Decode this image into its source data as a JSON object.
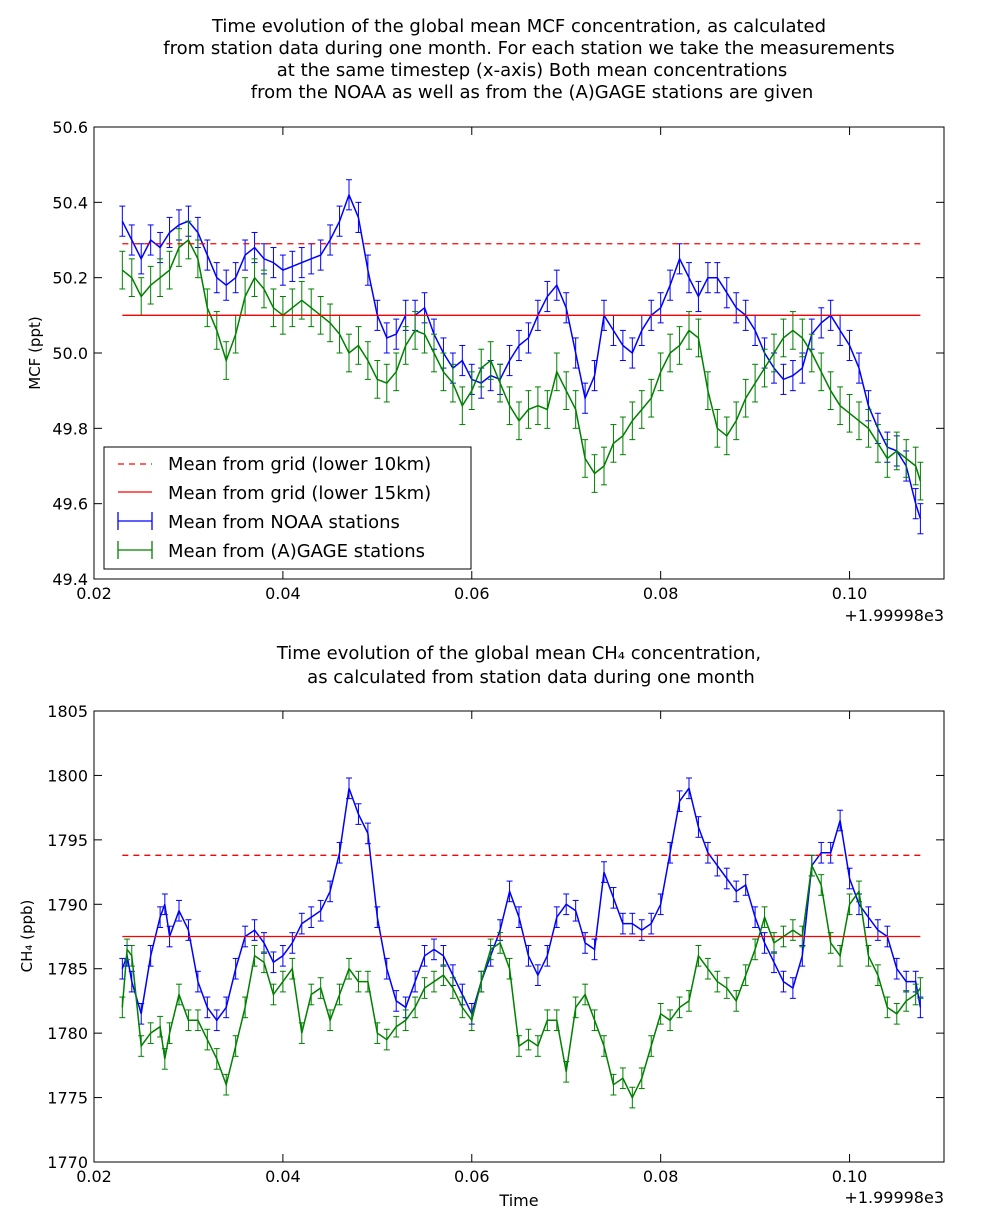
{
  "chart_data": [
    {
      "type": "line",
      "title_lines": [
        "Time evolution of the global mean MCF concentration, as calculated",
        "from station data during one month. For each station we take the measurements",
        "at the same timestep (x-axis) Both mean concentrations",
        "from the NOAA as well as from the (A)GAGE stations are given"
      ],
      "ylabel": "MCF (ppt)",
      "xlabel": "",
      "xlim": [
        0.02,
        0.11
      ],
      "ylim": [
        49.4,
        50.6
      ],
      "x_ticks": [
        "0.02",
        "0.04",
        "0.06",
        "0.08",
        "0.10"
      ],
      "y_ticks": [
        "49.4",
        "49.6",
        "49.8",
        "50.0",
        "50.2",
        "50.4",
        "50.6"
      ],
      "x_offset_label": "+1.99998e3",
      "grid": false,
      "legend_position": "lower-left",
      "hlines": [
        {
          "name": "Mean from grid (lower 10km)",
          "y": 50.29,
          "style": "dashed",
          "color": "#ff0000"
        },
        {
          "name": "Mean from grid (lower 15km)",
          "y": 50.1,
          "style": "solid",
          "color": "#ff0000"
        }
      ],
      "series": [
        {
          "name": "Mean from NOAA stations",
          "color": "#0000ff",
          "error": 0.04,
          "x": [
            0.023,
            0.024,
            0.025,
            0.026,
            0.027,
            0.028,
            0.029,
            0.03,
            0.031,
            0.032,
            0.033,
            0.034,
            0.035,
            0.036,
            0.037,
            0.038,
            0.039,
            0.04,
            0.041,
            0.042,
            0.043,
            0.044,
            0.045,
            0.046,
            0.047,
            0.048,
            0.049,
            0.05,
            0.051,
            0.052,
            0.053,
            0.054,
            0.055,
            0.056,
            0.057,
            0.058,
            0.059,
            0.06,
            0.061,
            0.062,
            0.063,
            0.064,
            0.065,
            0.066,
            0.067,
            0.068,
            0.069,
            0.07,
            0.071,
            0.072,
            0.073,
            0.074,
            0.075,
            0.076,
            0.077,
            0.078,
            0.079,
            0.08,
            0.081,
            0.082,
            0.083,
            0.084,
            0.085,
            0.086,
            0.087,
            0.088,
            0.089,
            0.09,
            0.091,
            0.092,
            0.093,
            0.094,
            0.095,
            0.096,
            0.097,
            0.098,
            0.099,
            0.1,
            0.101,
            0.102,
            0.103,
            0.104,
            0.105,
            0.106,
            0.107,
            0.1075
          ],
          "y": [
            50.35,
            50.3,
            50.25,
            50.3,
            50.28,
            50.32,
            50.34,
            50.35,
            50.32,
            50.26,
            50.2,
            50.18,
            50.2,
            50.26,
            50.28,
            50.25,
            50.24,
            50.22,
            50.23,
            50.24,
            50.25,
            50.26,
            50.3,
            50.35,
            50.42,
            50.36,
            50.22,
            50.1,
            50.04,
            50.05,
            50.1,
            50.1,
            50.12,
            50.05,
            50.0,
            49.96,
            49.98,
            49.93,
            49.92,
            49.94,
            49.93,
            49.98,
            50.02,
            50.04,
            50.1,
            50.15,
            50.18,
            50.12,
            50.0,
            49.88,
            49.94,
            50.1,
            50.06,
            50.02,
            50.0,
            50.06,
            50.1,
            50.12,
            50.18,
            50.25,
            50.2,
            50.15,
            50.2,
            50.2,
            50.16,
            50.12,
            50.1,
            50.06,
            50.0,
            49.96,
            49.93,
            49.94,
            49.96,
            50.05,
            50.08,
            50.1,
            50.06,
            50.02,
            49.96,
            49.86,
            49.8,
            49.75,
            49.74,
            49.7,
            49.6,
            49.56
          ]
        },
        {
          "name": "Mean from (A)GAGE stations",
          "color": "#008000",
          "error": 0.05,
          "x": [
            0.023,
            0.024,
            0.025,
            0.026,
            0.027,
            0.028,
            0.029,
            0.03,
            0.031,
            0.032,
            0.033,
            0.034,
            0.035,
            0.036,
            0.037,
            0.038,
            0.039,
            0.04,
            0.041,
            0.042,
            0.043,
            0.044,
            0.045,
            0.046,
            0.047,
            0.048,
            0.049,
            0.05,
            0.051,
            0.052,
            0.053,
            0.054,
            0.055,
            0.056,
            0.057,
            0.058,
            0.059,
            0.06,
            0.061,
            0.062,
            0.063,
            0.064,
            0.065,
            0.066,
            0.067,
            0.068,
            0.069,
            0.07,
            0.071,
            0.072,
            0.073,
            0.074,
            0.075,
            0.076,
            0.077,
            0.078,
            0.079,
            0.08,
            0.081,
            0.082,
            0.083,
            0.084,
            0.085,
            0.086,
            0.087,
            0.088,
            0.089,
            0.09,
            0.091,
            0.092,
            0.093,
            0.094,
            0.095,
            0.096,
            0.097,
            0.098,
            0.099,
            0.1,
            0.101,
            0.102,
            0.103,
            0.104,
            0.105,
            0.106,
            0.107,
            0.1075
          ],
          "y": [
            50.22,
            50.2,
            50.15,
            50.18,
            50.2,
            50.22,
            50.28,
            50.3,
            50.25,
            50.12,
            50.06,
            49.98,
            50.05,
            50.15,
            50.2,
            50.17,
            50.12,
            50.1,
            50.12,
            50.14,
            50.12,
            50.1,
            50.08,
            50.05,
            50.0,
            50.02,
            49.98,
            49.93,
            49.92,
            49.95,
            50.02,
            50.06,
            50.05,
            50.0,
            49.95,
            49.92,
            49.86,
            49.9,
            49.96,
            49.98,
            49.92,
            49.86,
            49.82,
            49.85,
            49.86,
            49.85,
            49.95,
            49.9,
            49.85,
            49.72,
            49.68,
            49.7,
            49.76,
            49.78,
            49.82,
            49.85,
            49.88,
            49.95,
            50.0,
            50.02,
            50.06,
            50.04,
            49.9,
            49.8,
            49.78,
            49.82,
            49.88,
            49.92,
            49.96,
            50.0,
            50.04,
            50.06,
            50.04,
            50.0,
            49.95,
            49.9,
            49.86,
            49.84,
            49.82,
            49.8,
            49.76,
            49.72,
            49.74,
            49.72,
            49.7,
            49.66
          ]
        }
      ]
    },
    {
      "type": "line",
      "title_lines": [
        "Time evolution of the global mean CH₄ concentration,",
        "as calculated from station data during one month"
      ],
      "ylabel": "CH₄ (ppb)",
      "xlabel": "Time",
      "xlim": [
        0.02,
        0.11
      ],
      "ylim": [
        1770,
        1805
      ],
      "x_ticks": [
        "0.02",
        "0.04",
        "0.06",
        "0.08",
        "0.10"
      ],
      "y_ticks": [
        "1770",
        "1775",
        "1780",
        "1785",
        "1790",
        "1795",
        "1800",
        "1805"
      ],
      "x_offset_label": "+1.99998e3",
      "grid": false,
      "hlines": [
        {
          "y": 1793.8,
          "style": "dashed",
          "color": "#ff0000"
        },
        {
          "y": 1787.5,
          "style": "solid",
          "color": "#ff0000"
        }
      ],
      "series": [
        {
          "color": "#0000ff",
          "error": 0.8,
          "x": [
            0.023,
            0.0235,
            0.024,
            0.025,
            0.026,
            0.027,
            0.0275,
            0.028,
            0.029,
            0.03,
            0.031,
            0.032,
            0.033,
            0.034,
            0.035,
            0.036,
            0.037,
            0.038,
            0.039,
            0.04,
            0.041,
            0.042,
            0.043,
            0.044,
            0.045,
            0.046,
            0.047,
            0.048,
            0.049,
            0.05,
            0.051,
            0.052,
            0.053,
            0.054,
            0.055,
            0.056,
            0.057,
            0.058,
            0.059,
            0.06,
            0.061,
            0.062,
            0.063,
            0.064,
            0.065,
            0.066,
            0.067,
            0.068,
            0.069,
            0.07,
            0.071,
            0.072,
            0.073,
            0.074,
            0.075,
            0.076,
            0.077,
            0.078,
            0.079,
            0.08,
            0.081,
            0.082,
            0.083,
            0.084,
            0.085,
            0.086,
            0.087,
            0.088,
            0.089,
            0.09,
            0.091,
            0.092,
            0.093,
            0.094,
            0.095,
            0.096,
            0.097,
            0.098,
            0.099,
            0.1,
            0.101,
            0.102,
            0.103,
            0.104,
            0.105,
            0.106,
            0.107,
            0.1075
          ],
          "y": [
            1785,
            1786,
            1784,
            1781.5,
            1786,
            1789,
            1790,
            1787.5,
            1789.5,
            1788,
            1784,
            1782,
            1781,
            1782,
            1785,
            1787.5,
            1788,
            1787,
            1785.5,
            1786,
            1787,
            1788.5,
            1789,
            1789.5,
            1791,
            1794,
            1799,
            1797,
            1795.5,
            1789,
            1785,
            1782.5,
            1782,
            1784,
            1786,
            1786.5,
            1786,
            1784.5,
            1783,
            1781.5,
            1784,
            1786,
            1788,
            1791,
            1789,
            1786,
            1784.5,
            1786,
            1789,
            1790,
            1789.5,
            1787,
            1786.5,
            1792.5,
            1790.5,
            1788.5,
            1788.5,
            1788,
            1788.5,
            1790,
            1794,
            1798,
            1799,
            1796,
            1794,
            1793,
            1792,
            1791,
            1791.5,
            1789,
            1787,
            1785.5,
            1784,
            1783.5,
            1786,
            1793,
            1794,
            1794,
            1796.5,
            1792,
            1790,
            1789,
            1788,
            1787.5,
            1785,
            1784,
            1784,
            1782
          ]
        },
        {
          "color": "#008000",
          "error": 0.8,
          "x": [
            0.023,
            0.0235,
            0.024,
            0.025,
            0.026,
            0.027,
            0.0275,
            0.028,
            0.029,
            0.03,
            0.031,
            0.032,
            0.033,
            0.034,
            0.035,
            0.036,
            0.037,
            0.038,
            0.039,
            0.04,
            0.041,
            0.042,
            0.043,
            0.044,
            0.045,
            0.046,
            0.047,
            0.048,
            0.049,
            0.05,
            0.051,
            0.052,
            0.053,
            0.054,
            0.055,
            0.056,
            0.057,
            0.058,
            0.059,
            0.06,
            0.061,
            0.062,
            0.063,
            0.064,
            0.065,
            0.066,
            0.067,
            0.068,
            0.069,
            0.07,
            0.071,
            0.072,
            0.073,
            0.074,
            0.075,
            0.076,
            0.077,
            0.078,
            0.079,
            0.08,
            0.081,
            0.082,
            0.083,
            0.084,
            0.085,
            0.086,
            0.087,
            0.088,
            0.089,
            0.09,
            0.091,
            0.092,
            0.093,
            0.094,
            0.095,
            0.096,
            0.097,
            0.098,
            0.099,
            0.1,
            0.101,
            0.102,
            0.103,
            0.104,
            0.105,
            0.106,
            0.107,
            0.1075
          ],
          "y": [
            1782,
            1786.5,
            1786,
            1779,
            1780,
            1780.5,
            1778,
            1780,
            1783,
            1781,
            1781,
            1779.5,
            1778,
            1776,
            1779,
            1782,
            1786,
            1785.5,
            1783,
            1784,
            1785,
            1780,
            1783,
            1783.5,
            1781,
            1783,
            1785,
            1784,
            1784,
            1780,
            1779.5,
            1780.5,
            1781,
            1782,
            1783.5,
            1784,
            1784.5,
            1783.5,
            1782,
            1781,
            1784,
            1786.5,
            1787,
            1785,
            1779,
            1779.5,
            1779,
            1781,
            1781,
            1777,
            1782,
            1783,
            1781,
            1779,
            1776,
            1776.5,
            1775,
            1776.5,
            1779,
            1781.5,
            1781,
            1782,
            1782.5,
            1786,
            1785,
            1784,
            1783.5,
            1782.5,
            1784.5,
            1786.5,
            1789,
            1787,
            1787.5,
            1788,
            1787.5,
            1793,
            1791.5,
            1787,
            1786,
            1790,
            1791,
            1786,
            1784.5,
            1782,
            1781.5,
            1782.5,
            1783,
            1783.5
          ]
        }
      ]
    }
  ]
}
